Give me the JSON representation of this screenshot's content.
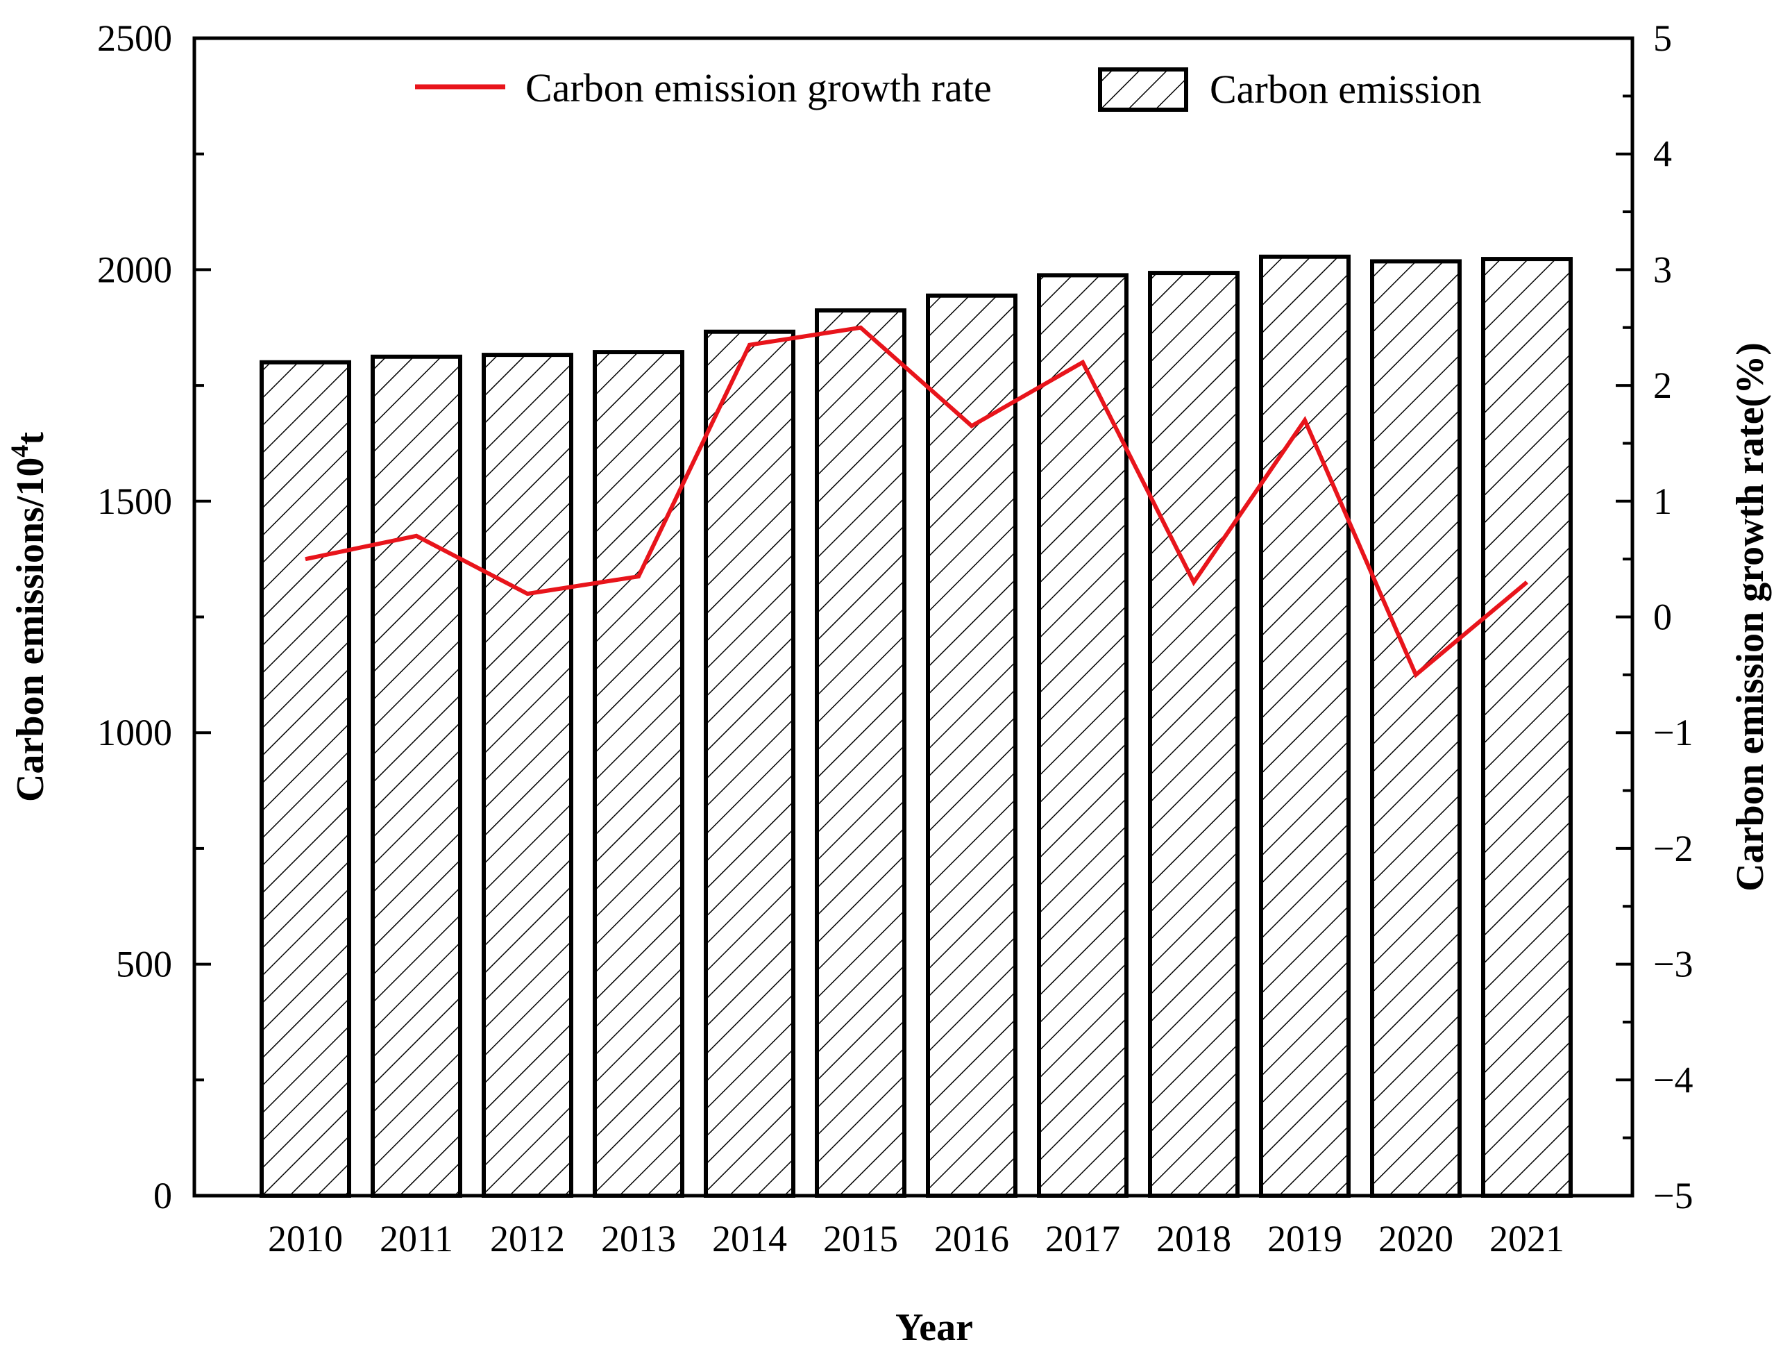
{
  "chart_data": {
    "type": "bar",
    "categories": [
      "2010",
      "2011",
      "2012",
      "2013",
      "2014",
      "2015",
      "2016",
      "2017",
      "2018",
      "2019",
      "2020",
      "2021"
    ],
    "series": [
      {
        "name": "Carbon emission",
        "kind": "bar",
        "axis": "left",
        "values": [
          1800,
          1812,
          1816,
          1822,
          1866,
          1912,
          1944,
          1988,
          1993,
          2028,
          2018,
          2023
        ]
      },
      {
        "name": "Carbon emission growth rate",
        "kind": "line",
        "axis": "right",
        "color": "#e8141b",
        "values": [
          0.5,
          0.7,
          0.2,
          0.35,
          2.35,
          2.5,
          1.65,
          2.2,
          0.3,
          1.7,
          -0.5,
          0.3
        ]
      }
    ],
    "xlabel": "Year",
    "ylabel": "Carbon emissions/10",
    "ylabel_superscript": "4",
    "ylabel_suffix": "t",
    "y2label": "Carbon emission growth rate(%)",
    "ylim": [
      0,
      2500
    ],
    "y2lim": [
      -5,
      5
    ],
    "yticks": [
      "0",
      "500",
      "1000",
      "1500",
      "2000",
      "2500"
    ],
    "y2ticks": [
      "−5",
      "−4",
      "−3",
      "−2",
      "−1",
      "0",
      "1",
      "2",
      "3",
      "4",
      "5"
    ],
    "legend": {
      "placement": "top",
      "line_label": "Carbon emission growth rate",
      "bar_label": "Carbon emission"
    },
    "colors": {
      "bar_fill": "#ffffff",
      "bar_stroke": "#000000",
      "hatch": "#000000",
      "line": "#e8141b"
    }
  }
}
